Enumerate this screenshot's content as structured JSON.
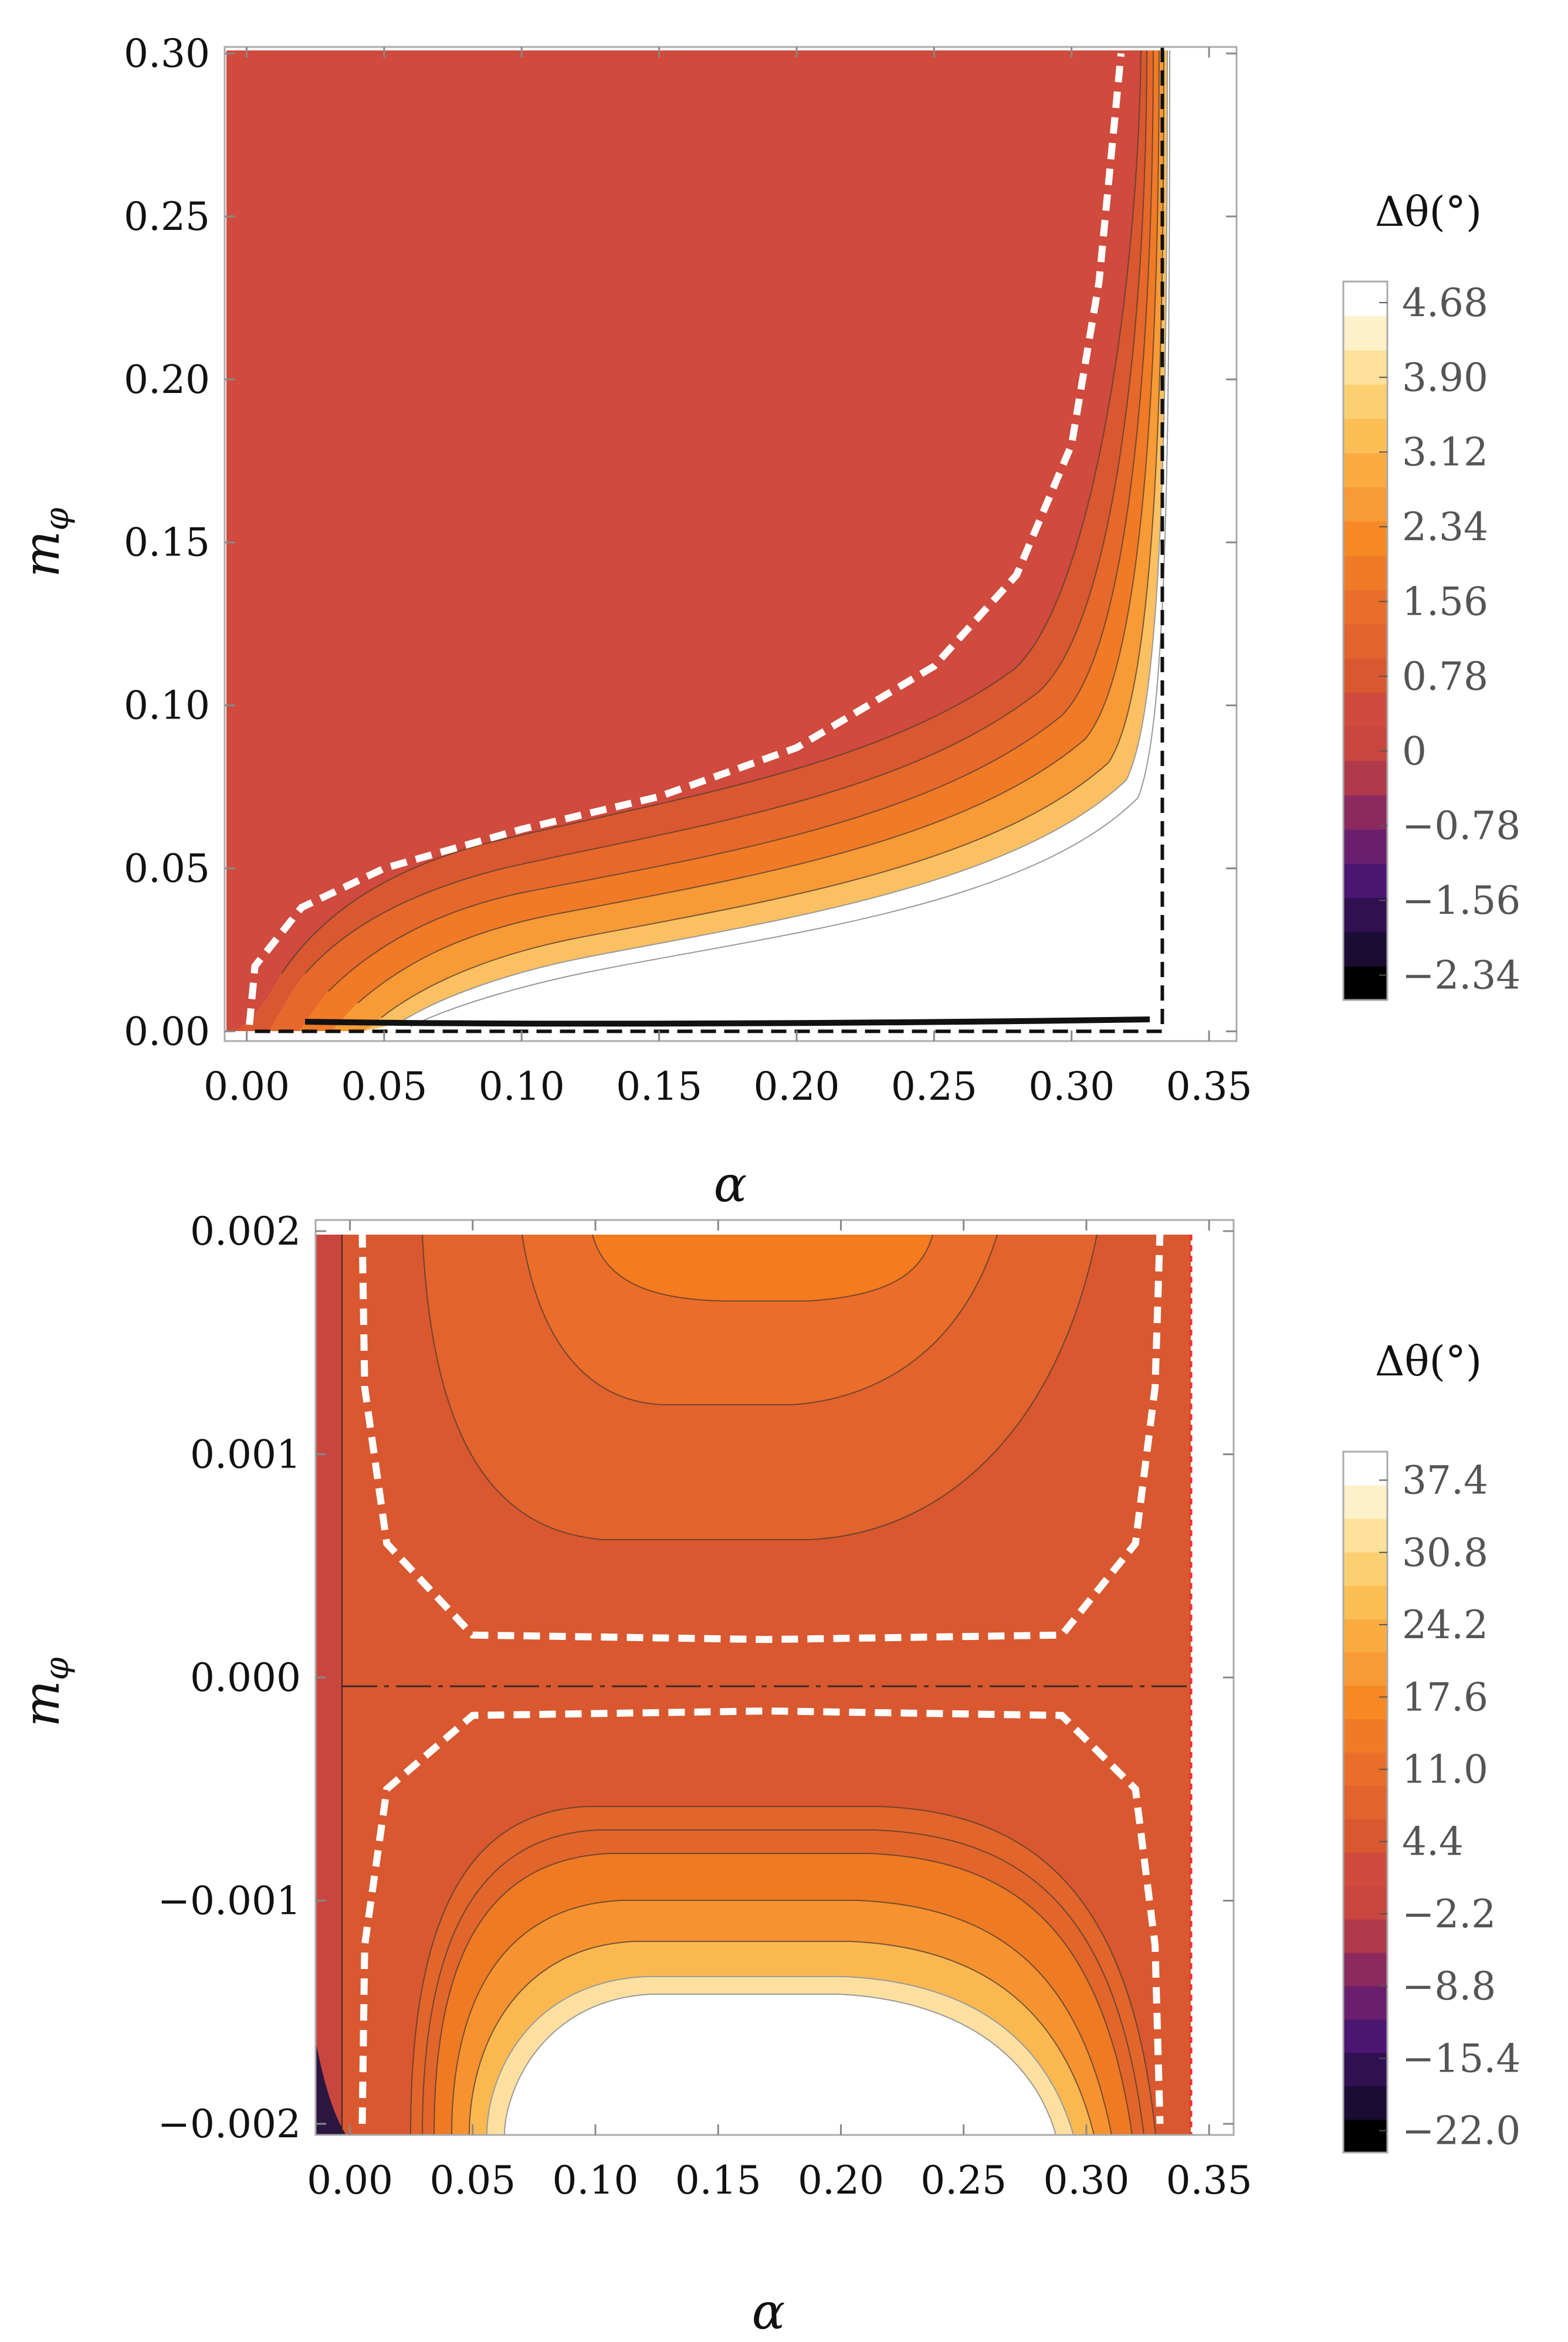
{
  "chart_data": [
    {
      "type": "contour",
      "title": "",
      "xlabel": "α",
      "ylabel": "m_φ",
      "xlim": [
        -0.008,
        0.36
      ],
      "ylim": [
        -0.003,
        0.302
      ],
      "xticks": [
        "0.00",
        "0.05",
        "0.10",
        "0.15",
        "0.20",
        "0.25",
        "0.30",
        "0.35"
      ],
      "xtick_values": [
        0,
        0.05,
        0.1,
        0.15,
        0.2,
        0.25,
        0.3,
        0.35
      ],
      "yticks": [
        "0.00",
        "0.05",
        "0.10",
        "0.15",
        "0.20",
        "0.25",
        "0.30"
      ],
      "ytick_values": [
        0,
        0.05,
        0.1,
        0.15,
        0.2,
        0.25,
        0.3
      ],
      "colorbar": {
        "title": "Δθ(°)",
        "range": [
          -2.6,
          4.9
        ],
        "labels": [
          "4.68",
          "3.90",
          "3.12",
          "2.34",
          "1.56",
          "0.78",
          "0",
          "−0.78",
          "−1.56",
          "−2.34"
        ],
        "label_values": [
          4.68,
          3.9,
          3.12,
          2.34,
          1.56,
          0.78,
          0,
          -0.78,
          -1.56,
          -2.34
        ]
      },
      "zero_contour_dashed": [
        [
          0.001,
          0.002
        ],
        [
          0.003,
          0.02
        ],
        [
          0.02,
          0.038
        ],
        [
          0.05,
          0.05
        ],
        [
          0.1,
          0.062
        ],
        [
          0.15,
          0.072
        ],
        [
          0.2,
          0.087
        ],
        [
          0.25,
          0.112
        ],
        [
          0.28,
          0.14
        ],
        [
          0.3,
          0.18
        ],
        [
          0.31,
          0.23
        ],
        [
          0.318,
          0.3
        ]
      ],
      "boundary_alpha": 0.333
    },
    {
      "type": "contour",
      "title": "",
      "xlabel": "α",
      "ylabel": "m_φ",
      "xlim": [
        -0.014,
        0.36
      ],
      "ylim": [
        -0.00205,
        0.00205
      ],
      "xticks": [
        "0.00",
        "0.05",
        "0.10",
        "0.15",
        "0.20",
        "0.25",
        "0.30",
        "0.35"
      ],
      "xtick_values": [
        0,
        0.05,
        0.1,
        0.15,
        0.2,
        0.25,
        0.3,
        0.35
      ],
      "yticks": [
        "0.002",
        "0.001",
        "0.000",
        "−0.001",
        "−0.002"
      ],
      "ytick_values": [
        0.002,
        0.001,
        0,
        -0.001,
        -0.002
      ],
      "colorbar": {
        "title": "Δθ(°)",
        "range": [
          -24,
          40
        ],
        "labels": [
          "37.4",
          "30.8",
          "24.2",
          "17.6",
          "11.0",
          "4.4",
          "−2.2",
          "−8.8",
          "−15.4",
          "−22.0"
        ],
        "label_values": [
          37.4,
          30.8,
          24.2,
          17.6,
          11,
          4.4,
          -2.2,
          -8.8,
          -15.4,
          -22
        ]
      },
      "zero_contour_dashed_upper": [
        [
          0.005,
          0.002
        ],
        [
          0.006,
          0.0013
        ],
        [
          0.015,
          0.0006
        ],
        [
          0.05,
          0.00019
        ],
        [
          0.17,
          0.00017
        ],
        [
          0.29,
          0.00019
        ],
        [
          0.32,
          0.0006
        ],
        [
          0.328,
          0.0013
        ],
        [
          0.33,
          0.002
        ]
      ],
      "zero_contour_dashed_lower": [
        [
          0.005,
          -0.002
        ],
        [
          0.006,
          -0.0012
        ],
        [
          0.015,
          -0.0005
        ],
        [
          0.05,
          -0.00017
        ],
        [
          0.17,
          -0.00015
        ],
        [
          0.29,
          -0.00017
        ],
        [
          0.32,
          -0.0005
        ],
        [
          0.328,
          -0.0012
        ],
        [
          0.33,
          -0.002
        ]
      ],
      "boundary_alpha": 0.333
    }
  ]
}
